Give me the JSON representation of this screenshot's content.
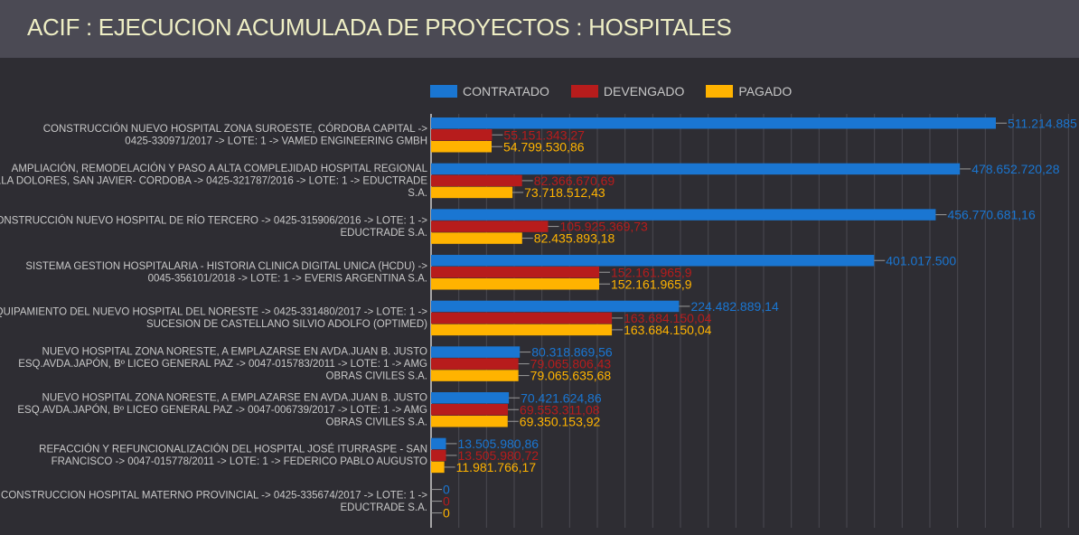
{
  "header": {
    "title": "ACIF : EJECUCION ACUMULADA DE PROYECTOS : HOSPITALES"
  },
  "colors": {
    "CONTRATADO": "#1a76d2",
    "DEVENGADO": "#b71c1c",
    "PAGADO": "#ffb300"
  },
  "chart_data": {
    "type": "bar",
    "orientation": "horizontal",
    "title": "ACIF : EJECUCION ACUMULADA DE PROYECTOS : HOSPITALES",
    "xlabel": "",
    "ylabel": "",
    "xlim": [
      0,
      540000000
    ],
    "grid": true,
    "legend_position": "top",
    "legend": [
      "CONTRATADO",
      "DEVENGADO",
      "PAGADO"
    ],
    "categories": [
      [
        "CONSTRUCCIÓN NUEVO HOSPITAL ZONA SUROESTE, CÓRDOBA CAPITAL ->",
        "0425-330971/2017 -> LOTE: 1 -> VAMED ENGINEERING GMBH"
      ],
      [
        "AMPLIACIÓN, REMODELACIÓN Y PASO A ALTA COMPLEJIDAD HOSPITAL REGIONAL",
        "VILLA DOLORES, SAN JAVIER- CORDOBA -> 0425-321787/2016 -> LOTE: 1 -> EDUCTRADE",
        "S.A."
      ],
      [
        "CONSTRUCCIÓN NUEVO HOSPITAL DE RÍO TERCERO -> 0425-315906/2016 -> LOTE: 1 ->",
        "EDUCTRADE S.A."
      ],
      [
        "SISTEMA GESTION HOSPITALARIA - HISTORIA CLINICA DIGITAL UNICA (HCDU) ->",
        "0045-356101/2018 -> LOTE: 1 -> EVERIS ARGENTINA S.A."
      ],
      [
        "EQUIPAMIENTO DEL NUEVO HOSPITAL DEL NORESTE -> 0425-331480/2017 -> LOTE: 1 ->",
        "SUCESION DE CASTELLANO SILVIO ADOLFO (OPTIMED)"
      ],
      [
        "NUEVO HOSPITAL ZONA NORESTE, A EMPLAZARSE EN AVDA.JUAN B. JUSTO",
        "ESQ.AVDA.JAPÓN, Bº LICEO GENERAL PAZ -> 0047-015783/2011 -> LOTE: 1 -> AMG",
        "OBRAS CIVILES S.A."
      ],
      [
        "NUEVO HOSPITAL ZONA NORESTE, A EMPLAZARSE EN AVDA.JUAN B. JUSTO",
        "ESQ.AVDA.JAPÓN, Bº LICEO GENERAL PAZ -> 0047-006739/2017 -> LOTE: 1 -> AMG",
        "OBRAS CIVILES S.A."
      ],
      [
        "REFACCIÓN Y REFUNCIONALIZACIÓN DEL HOSPITAL JOSÉ ITURRASPE - SAN",
        "FRANCISCO -> 0047-015778/2011 -> LOTE: 1 -> FEDERICO PABLO AUGUSTO"
      ],
      [
        "CONSTRUCCION HOSPITAL MATERNO PROVINCIAL -> 0425-335674/2017 -> LOTE: 1 ->",
        "EDUCTRADE S.A."
      ]
    ],
    "series": [
      {
        "name": "CONTRATADO",
        "values": [
          511214885,
          478652720.28,
          456770681.16,
          401017500,
          224482889.14,
          80318869.56,
          70421624.86,
          13505980.86,
          0
        ],
        "labels": [
          "511.214.885",
          "478.652.720,28",
          "456.770.681,16",
          "401.017.500",
          "224.482.889,14",
          "80.318.869,56",
          "70.421.624,86",
          "13.505.980,86",
          "0"
        ]
      },
      {
        "name": "DEVENGADO",
        "values": [
          55151343.27,
          82366670.69,
          105925369.73,
          152161965.9,
          163684150.04,
          79065806.43,
          69553311.08,
          13505980.72,
          0
        ],
        "labels": [
          "55.151.343,27",
          "82.366.670,69",
          "105.925.369,73",
          "152.161.965,9",
          "163.684.150,04",
          "79.065.806,43",
          "69.553.311,08",
          "13.505.980,72",
          "0"
        ]
      },
      {
        "name": "PAGADO",
        "values": [
          54799530.86,
          73718512.43,
          82435893.18,
          152161965.9,
          163684150.04,
          79065635.68,
          69350153.92,
          11981766.17,
          0
        ],
        "labels": [
          "54.799.530,86",
          "73.718.512,43",
          "82.435.893,18",
          "152.161.965,9",
          "163.684.150,04",
          "79.065.635,68",
          "69.350.153,92",
          "11.981.766,17",
          "0"
        ]
      }
    ]
  }
}
